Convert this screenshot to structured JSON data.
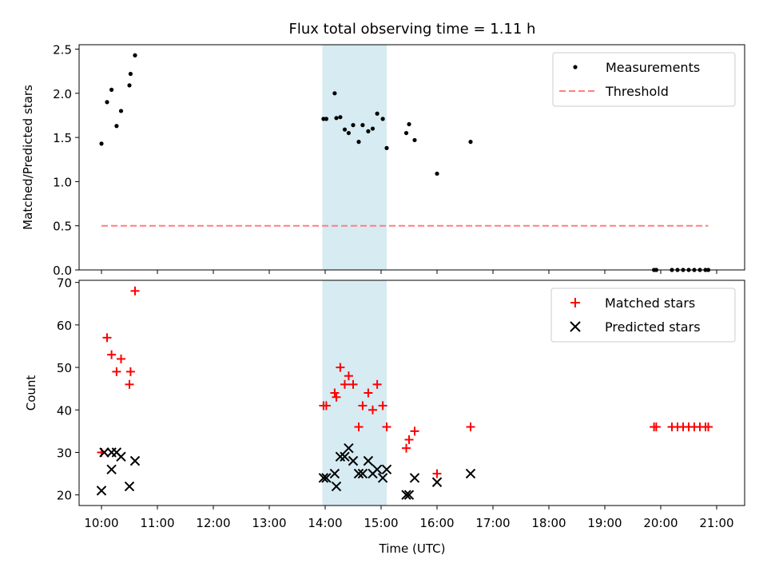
{
  "title": "Flux total observing time = 1.11 h",
  "colors": {
    "measurements": "#000000",
    "threshold": "#ff7f7f",
    "matched": "#ff0000",
    "predicted": "#000000",
    "span": "#add8e6"
  },
  "chart_data": [
    {
      "type": "scatter",
      "panel": "top",
      "title": "Flux total observing time = 1.11 h",
      "xlabel": "",
      "ylabel": "Matched/Predicted stars",
      "xlim": [
        9.6,
        21.5
      ],
      "ylim": [
        0,
        2.55
      ],
      "yticks": [
        0.0,
        0.5,
        1.0,
        1.5,
        2.0,
        2.5
      ],
      "ytick_labels": [
        "0.0",
        "0.5",
        "1.0",
        "1.5",
        "2.0",
        "2.5"
      ],
      "legend_position": "top-right",
      "highlight_span": {
        "from": 13.95,
        "to": 15.1
      },
      "series": [
        {
          "name": "Measurements",
          "kind": "points",
          "x": [
            10.0,
            10.1,
            10.18,
            10.27,
            10.35,
            10.5,
            10.52,
            10.6,
            13.97,
            14.02,
            14.17,
            14.2,
            14.27,
            14.35,
            14.42,
            14.5,
            14.6,
            14.67,
            14.77,
            14.85,
            14.93,
            15.03,
            15.1,
            15.45,
            15.5,
            15.6,
            16.0,
            16.6,
            19.88,
            19.92,
            20.2,
            20.3,
            20.4,
            20.5,
            20.6,
            20.7,
            20.8,
            20.85
          ],
          "y": [
            1.43,
            1.9,
            2.04,
            1.63,
            1.8,
            2.09,
            2.22,
            2.43,
            1.71,
            1.71,
            2.0,
            1.72,
            1.73,
            1.59,
            1.55,
            1.64,
            1.45,
            1.64,
            1.57,
            1.6,
            1.77,
            1.71,
            1.38,
            1.55,
            1.65,
            1.47,
            1.09,
            1.45,
            0.0,
            0.0,
            0.0,
            0.0,
            0.0,
            0.0,
            0.0,
            0.0,
            0.0,
            0.0
          ]
        },
        {
          "name": "Threshold",
          "kind": "dashed-line",
          "x": [
            10.0,
            20.85
          ],
          "y": [
            0.5,
            0.5
          ]
        }
      ]
    },
    {
      "type": "scatter",
      "panel": "bottom",
      "xlabel": "Time (UTC)",
      "ylabel": "Count",
      "xlim": [
        9.6,
        21.5
      ],
      "ylim": [
        17.5,
        70.5
      ],
      "xticks": [
        10,
        11,
        12,
        13,
        14,
        15,
        16,
        17,
        18,
        19,
        20,
        21
      ],
      "xtick_labels": [
        "10:00",
        "11:00",
        "12:00",
        "13:00",
        "14:00",
        "15:00",
        "16:00",
        "17:00",
        "18:00",
        "19:00",
        "20:00",
        "21:00"
      ],
      "yticks": [
        20,
        30,
        40,
        50,
        60,
        70
      ],
      "ytick_labels": [
        "20",
        "30",
        "40",
        "50",
        "60",
        "70"
      ],
      "legend_position": "top-right",
      "highlight_span": {
        "from": 13.95,
        "to": 15.1
      },
      "series": [
        {
          "name": "Matched stars",
          "marker": "plus",
          "x": [
            10.0,
            10.1,
            10.18,
            10.27,
            10.35,
            10.5,
            10.52,
            10.6,
            13.97,
            14.02,
            14.17,
            14.2,
            14.27,
            14.35,
            14.42,
            14.5,
            14.6,
            14.67,
            14.77,
            14.85,
            14.93,
            15.03,
            15.1,
            15.45,
            15.5,
            15.6,
            16.0,
            16.6,
            19.88,
            19.92,
            20.2,
            20.3,
            20.4,
            20.5,
            20.6,
            20.7,
            20.8,
            20.85
          ],
          "y": [
            30,
            57,
            53,
            49,
            52,
            46,
            49,
            68,
            41,
            41,
            44,
            43,
            50,
            46,
            48,
            46,
            36,
            41,
            44,
            40,
            46,
            41,
            36,
            31,
            33,
            35,
            25,
            36,
            36,
            36,
            36,
            36,
            36,
            36,
            36,
            36,
            36,
            36
          ]
        },
        {
          "name": "Predicted stars",
          "marker": "x",
          "x": [
            10.0,
            10.05,
            10.18,
            10.27,
            10.35,
            10.18,
            10.5,
            10.6,
            13.97,
            14.02,
            14.17,
            14.2,
            14.27,
            14.35,
            14.42,
            14.5,
            14.6,
            14.67,
            14.77,
            14.85,
            14.93,
            15.03,
            15.1,
            15.45,
            15.5,
            15.6,
            16.0,
            16.6
          ],
          "y": [
            21,
            30,
            30,
            30,
            29,
            26,
            22,
            28,
            24,
            24,
            25,
            22,
            29,
            29,
            31,
            28,
            25,
            25,
            28,
            25,
            26,
            24,
            26,
            20,
            20,
            24,
            23,
            25
          ]
        }
      ]
    }
  ]
}
